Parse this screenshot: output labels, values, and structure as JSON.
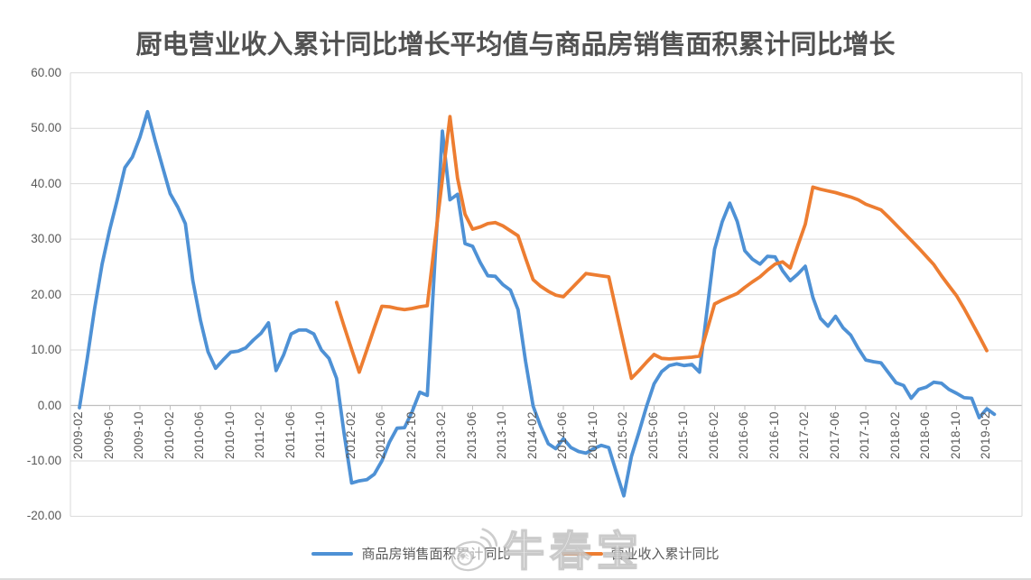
{
  "title": "厨电营业收入累计同比增长平均值与商品房销售面积累计同比增长",
  "watermark": {
    "icon": "weibo-logo-icon",
    "text": "牛春宝"
  },
  "legend": [
    {
      "label": "商品房销售面积累计同比",
      "color": "#4E91D5"
    },
    {
      "label": "营业收入累计同比",
      "color": "#ED7D31"
    }
  ],
  "colors": {
    "series_blue": "#4E91D5",
    "series_orange": "#ED7D31",
    "gridline": "#D9D9D9",
    "axis_line": "#BFBFBF",
    "label_text": "#595959",
    "title_text": "#525252"
  },
  "chart_data": {
    "type": "line",
    "title": "厨电营业收入累计同比增长平均值与商品房销售面积累计同比增长",
    "xlabel": "",
    "ylabel": "",
    "ylim": [
      -20,
      60
    ],
    "grid": true,
    "legend_position": "bottom",
    "x_unit": "year-month, monthly spacing",
    "x_range": [
      "2009-02",
      "2019-03"
    ],
    "x_tick_labels": [
      "2009-02",
      "2009-06",
      "2009-10",
      "2010-02",
      "2010-06",
      "2010-10",
      "2011-02",
      "2011-06",
      "2011-10",
      "2012-02",
      "2012-06",
      "2012-10",
      "2013-02",
      "2013-06",
      "2013-10",
      "2014-02",
      "2014-06",
      "2014-10",
      "2015-02",
      "2015-06",
      "2015-10",
      "2016-02",
      "2016-06",
      "2016-10",
      "2017-02",
      "2017-06",
      "2017-10",
      "2018-02",
      "2018-06",
      "2018-10",
      "2019-02"
    ],
    "y_tick_values": [
      60,
      50,
      40,
      30,
      20,
      10,
      0,
      -10,
      -20
    ],
    "y_tick_labels": [
      "60.00",
      "50.00",
      "40.00",
      "30.00",
      "20.00",
      "10.00",
      "0.00",
      "-10.00",
      "-20.00"
    ],
    "series": [
      {
        "name": "商品房销售面积累计同比",
        "color": "#4E91D5",
        "start": "2009-02",
        "values": [
          -0.4,
          8.2,
          17.5,
          25.5,
          31.7,
          37.1,
          42.9,
          44.8,
          48.4,
          53.0,
          47.8,
          43.0,
          38.2,
          35.8,
          32.8,
          22.5,
          15.4,
          9.7,
          6.7,
          8.2,
          9.6,
          9.8,
          10.4,
          11.8,
          13.0,
          14.9,
          6.3,
          9.1,
          12.9,
          13.6,
          13.6,
          12.9,
          10.0,
          8.5,
          4.9,
          -5.0,
          -14.0,
          -13.6,
          -13.4,
          -12.4,
          -10.0,
          -6.6,
          -4.1,
          -4.0,
          -1.1,
          2.4,
          1.8,
          25.6,
          49.5,
          37.1,
          38.1,
          29.2,
          28.7,
          25.8,
          23.4,
          23.3,
          21.8,
          20.8,
          17.3,
          8.0,
          -0.1,
          -3.8,
          -6.9,
          -7.8,
          -6.0,
          -7.6,
          -8.3,
          -8.6,
          -7.8,
          -7.2,
          -7.6,
          -12.0,
          -16.3,
          -9.2,
          -4.8,
          -0.2,
          3.9,
          6.1,
          7.2,
          7.5,
          7.2,
          7.4,
          6.0,
          17.1,
          28.2,
          33.1,
          36.5,
          33.2,
          27.9,
          26.4,
          25.5,
          26.9,
          26.8,
          24.3,
          22.5,
          23.7,
          25.1,
          19.5,
          15.7,
          14.3,
          16.1,
          14.0,
          12.7,
          10.3,
          8.2,
          7.9,
          7.7,
          5.9,
          4.1,
          3.6,
          1.3,
          2.9,
          3.3,
          4.2,
          4.0,
          2.9,
          2.2,
          1.4,
          1.3,
          -2.2,
          -0.6,
          -1.6
        ]
      },
      {
        "name": "营业收入累计同比",
        "color": "#ED7D31",
        "start": "2011-12",
        "values": [
          18.6,
          14.3,
          10.1,
          6.0,
          10.0,
          14.0,
          17.9,
          17.8,
          17.5,
          17.3,
          17.5,
          17.8,
          18.0,
          29.5,
          40.8,
          52.1,
          41.0,
          34.5,
          31.8,
          32.2,
          32.8,
          33.0,
          32.4,
          31.5,
          30.6,
          26.6,
          22.7,
          21.5,
          20.6,
          19.9,
          19.6,
          21.0,
          22.4,
          23.8,
          23.6,
          23.4,
          23.2,
          17.1,
          11.0,
          4.9,
          6.3,
          7.8,
          9.2,
          8.5,
          8.4,
          8.5,
          8.6,
          8.7,
          8.9,
          13.5,
          18.3,
          19.0,
          19.6,
          20.2,
          21.3,
          22.3,
          23.2,
          24.4,
          25.5,
          25.9,
          24.8,
          28.8,
          32.7,
          39.4,
          39.0,
          38.7,
          38.4,
          38.0,
          37.6,
          37.1,
          36.3,
          35.8,
          35.3,
          34.0,
          32.6,
          31.2,
          29.8,
          28.4,
          26.9,
          25.4,
          23.4,
          21.6,
          19.8,
          17.5,
          15.0,
          12.5,
          9.9
        ]
      }
    ]
  }
}
